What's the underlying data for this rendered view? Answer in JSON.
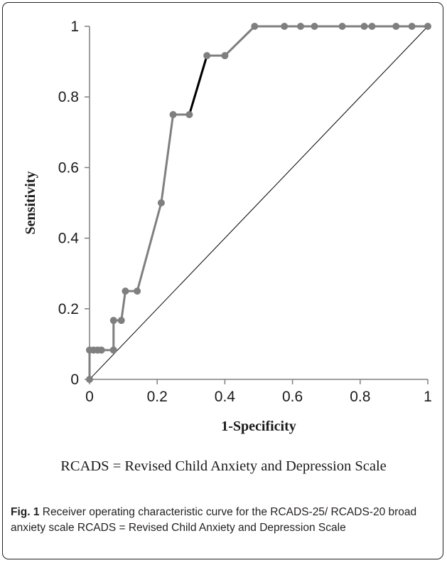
{
  "chart_data": {
    "type": "line",
    "xlabel": "1-Specificity",
    "ylabel": "Sensitivity",
    "xlim": [
      0,
      1
    ],
    "ylim": [
      0,
      1
    ],
    "xticks": [
      "0",
      "0.2",
      "0.4",
      "0.6",
      "0.8",
      "1"
    ],
    "yticks": [
      "0",
      "0.2",
      "0.4",
      "0.6",
      "0.8",
      "1"
    ],
    "grid": false,
    "legend": "none",
    "series": [
      {
        "color": "#7f7f7f",
        "highlight_segment_color": "#000000",
        "highlight_segment": [
          [
            0.295,
            0.75
          ],
          [
            0.347,
            0.917
          ]
        ],
        "x": [
          0,
          0,
          0.012,
          0.024,
          0.035,
          0.071,
          0.071,
          0.094,
          0.106,
          0.141,
          0.212,
          0.247,
          0.295,
          0.347,
          0.4,
          0.488,
          0.576,
          0.624,
          0.665,
          0.747,
          0.812,
          0.835,
          0.906,
          0.953,
          1
        ],
        "y": [
          0,
          0.083,
          0.083,
          0.083,
          0.083,
          0.083,
          0.167,
          0.167,
          0.25,
          0.25,
          0.5,
          0.75,
          0.75,
          0.917,
          0.917,
          1,
          1,
          1,
          1,
          1,
          1,
          1,
          1,
          1,
          1
        ]
      }
    ],
    "reference_line": {
      "x": [
        0,
        1
      ],
      "y": [
        0,
        1
      ],
      "color": "#000000"
    }
  },
  "note": "RCADS = Revised Child Anxiety and Depression Scale",
  "caption": {
    "label": "Fig. 1",
    "text": "Receiver operating characteristic curve for the RCADS-25/ RCADS-20 broad anxiety scale RCADS = Revised Child Anxiety and Depression Scale"
  }
}
